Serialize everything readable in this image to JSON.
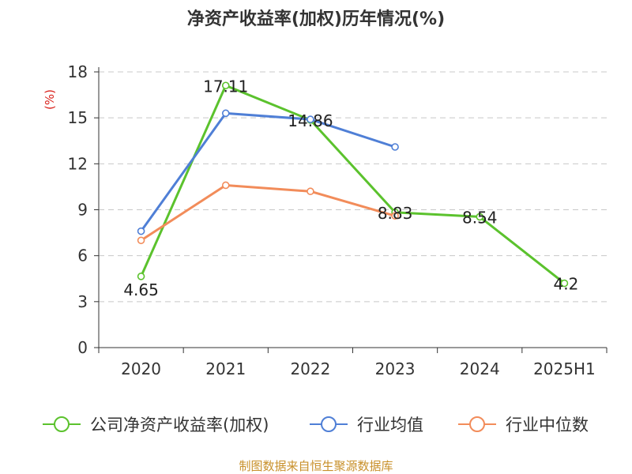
{
  "title": "净资产收益率(加权)历年情况(%)",
  "footer": "制图数据来自恒生聚源数据库",
  "chart_data": {
    "type": "line",
    "title": "净资产收益率(加权)历年情况(%)",
    "ylabel": "(%)",
    "xlabel": "",
    "categories": [
      "2020",
      "2021",
      "2022",
      "2023",
      "2024",
      "2025H1"
    ],
    "ylim": [
      0,
      18
    ],
    "yticks": [
      0,
      3,
      6,
      9,
      12,
      15,
      18
    ],
    "grid": true,
    "legend_position": "bottom",
    "series": [
      {
        "name": "公司净资产收益率(加权)",
        "color": "#5bc22d",
        "values": [
          4.65,
          17.11,
          14.86,
          8.83,
          8.54,
          4.2
        ],
        "labels": [
          "4.65",
          "17.11",
          "14.86",
          "8.83",
          "8.54",
          "4.2"
        ]
      },
      {
        "name": "行业均值",
        "color": "#4f7fd6",
        "values": [
          7.6,
          15.3,
          14.9,
          13.1,
          null,
          null
        ]
      },
      {
        "name": "行业中位数",
        "color": "#f28c5a",
        "values": [
          7.0,
          10.6,
          10.2,
          8.6,
          null,
          null
        ]
      }
    ]
  }
}
